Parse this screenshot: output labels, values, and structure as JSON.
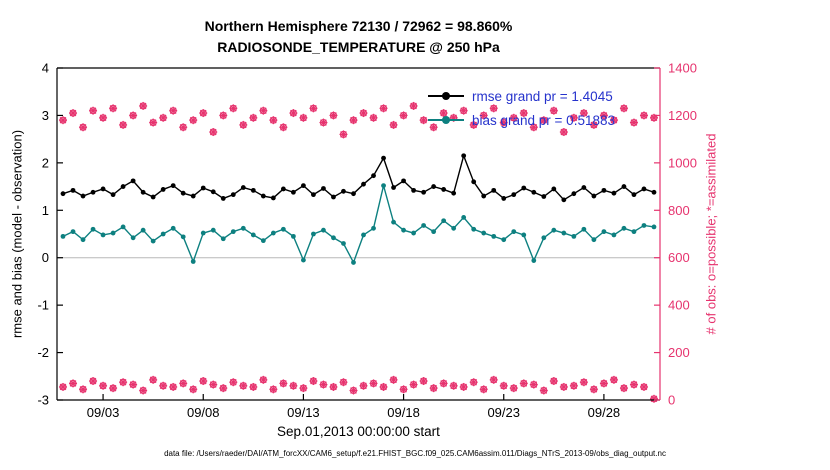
{
  "title": {
    "line1": "Northern Hemisphere 72130 / 72962 = 98.860%",
    "line2": "RADIOSONDE_TEMPERATURE @ 250 hPa"
  },
  "axes": {
    "left_label": "rmse and bias (model - observation)",
    "right_label": "# of obs: o=possible; *=assimilated",
    "x_label": "Sep.01,2013 00:00:00 start",
    "left_ticks": [
      4,
      3,
      2,
      1,
      0,
      -1,
      -2,
      -3
    ],
    "right_ticks": [
      1400,
      1200,
      1000,
      800,
      600,
      400,
      200,
      0
    ],
    "x_ticks": [
      {
        "day": 3,
        "label": "09/03"
      },
      {
        "day": 8,
        "label": "09/08"
      },
      {
        "day": 13,
        "label": "09/13"
      },
      {
        "day": 18,
        "label": "09/18"
      },
      {
        "day": 23,
        "label": "09/23"
      },
      {
        "day": 28,
        "label": "09/28"
      }
    ]
  },
  "legend": [
    {
      "label": "rmse grand pr = 1.4045",
      "color": "#000000"
    },
    {
      "label": "bias grand pr = 0.51883",
      "color": "#0d8080"
    }
  ],
  "caption": "data file: /Users/raeder/DAI/ATM_forcXX/CAM6_setup/f.e21.FHIST_BGC.f09_025.CAM6assim.011/Diags_NTrS_2013-09/obs_diag_output.nc",
  "colors": {
    "rmse": "#000000",
    "bias": "#0d8080",
    "obs": "#e6336e",
    "legend_text": "#2633cc",
    "zero_line": "#b8b8b8"
  },
  "chart_data": {
    "type": "line",
    "title": "Northern Hemisphere 72130 / 72962 = 98.860% | RADIOSONDE_TEMPERATURE @ 250 hPa",
    "xlabel": "Sep.01,2013 00:00:00 start",
    "left_ylabel": "rmse and bias (model - observation)",
    "right_ylabel": "# of obs: o=possible; *=assimilated",
    "left_ylim": [
      -3,
      4
    ],
    "right_ylim": [
      0,
      1400
    ],
    "x_domain": [
      0.7,
      30.8
    ],
    "x_days": [
      1,
      1.5,
      2,
      2.5,
      3,
      3.5,
      4,
      4.5,
      5,
      5.5,
      6,
      6.5,
      7,
      7.5,
      8,
      8.5,
      9,
      9.5,
      10,
      10.5,
      11,
      11.5,
      12,
      12.5,
      13,
      13.5,
      14,
      14.5,
      15,
      15.5,
      16,
      16.5,
      17,
      17.5,
      18,
      18.5,
      19,
      19.5,
      20,
      20.5,
      21,
      21.5,
      22,
      22.5,
      23,
      23.5,
      24,
      24.5,
      25,
      25.5,
      26,
      26.5,
      27,
      27.5,
      28,
      28.5,
      29,
      29.5,
      30,
      30.5
    ],
    "series": [
      {
        "name": "rmse",
        "axis": "left",
        "color": "#000000",
        "marker": "filled-circle",
        "grand_value": 1.4045,
        "values": [
          1.35,
          1.42,
          1.3,
          1.38,
          1.45,
          1.33,
          1.5,
          1.62,
          1.38,
          1.28,
          1.44,
          1.52,
          1.36,
          1.3,
          1.47,
          1.39,
          1.25,
          1.33,
          1.48,
          1.42,
          1.3,
          1.26,
          1.45,
          1.38,
          1.52,
          1.33,
          1.46,
          1.28,
          1.4,
          1.35,
          1.55,
          1.73,
          2.1,
          1.48,
          1.62,
          1.42,
          1.38,
          1.5,
          1.44,
          1.36,
          2.15,
          1.6,
          1.3,
          1.42,
          1.25,
          1.33,
          1.47,
          1.38,
          1.29,
          1.45,
          1.22,
          1.35,
          1.48,
          1.3,
          1.42,
          1.36,
          1.5,
          1.33,
          1.45,
          1.38
        ]
      },
      {
        "name": "bias",
        "axis": "left",
        "color": "#0d8080",
        "marker": "filled-circle",
        "grand_value": 0.51883,
        "values": [
          0.45,
          0.55,
          0.38,
          0.6,
          0.48,
          0.52,
          0.65,
          0.42,
          0.58,
          0.35,
          0.5,
          0.62,
          0.44,
          -0.08,
          0.52,
          0.58,
          0.4,
          0.55,
          0.62,
          0.48,
          0.36,
          0.52,
          0.6,
          0.45,
          -0.05,
          0.5,
          0.58,
          0.42,
          0.3,
          -0.1,
          0.48,
          0.62,
          1.52,
          0.75,
          0.58,
          0.52,
          0.68,
          0.55,
          0.78,
          0.62,
          0.85,
          0.6,
          0.52,
          0.45,
          0.38,
          0.55,
          0.48,
          -0.06,
          0.42,
          0.58,
          0.52,
          0.45,
          0.6,
          0.38,
          0.55,
          0.48,
          0.62,
          0.55,
          0.68,
          0.65
        ]
      },
      {
        "name": "obs_count_high",
        "axis": "right",
        "color": "#e6336e",
        "marker": "circle-asterisk",
        "values": [
          1180,
          1210,
          1150,
          1220,
          1190,
          1230,
          1160,
          1200,
          1240,
          1170,
          1190,
          1220,
          1150,
          1180,
          1210,
          1130,
          1200,
          1230,
          1160,
          1190,
          1220,
          1180,
          1150,
          1210,
          1190,
          1230,
          1170,
          1200,
          1120,
          1180,
          1210,
          1190,
          1230,
          1160,
          1200,
          1240,
          1180,
          1150,
          1210,
          1190,
          1220,
          1160,
          1200,
          1230,
          1170,
          1190,
          1210,
          1150,
          1180,
          1220,
          1130,
          1190,
          1210,
          1160,
          1200,
          1180,
          1230,
          1170,
          1200,
          1190
        ]
      },
      {
        "name": "obs_count_low",
        "axis": "right",
        "color": "#e6336e",
        "marker": "circle-asterisk",
        "values": [
          55,
          70,
          45,
          80,
          60,
          50,
          75,
          65,
          40,
          85,
          60,
          55,
          70,
          45,
          80,
          65,
          50,
          75,
          60,
          55,
          85,
          45,
          70,
          60,
          50,
          80,
          65,
          55,
          75,
          40,
          60,
          70,
          55,
          85,
          45,
          65,
          80,
          50,
          70,
          60,
          55,
          75,
          45,
          85,
          60,
          50,
          70,
          65,
          40,
          80,
          55,
          60,
          75,
          45,
          70,
          85,
          50,
          65,
          55,
          5
        ]
      }
    ]
  }
}
